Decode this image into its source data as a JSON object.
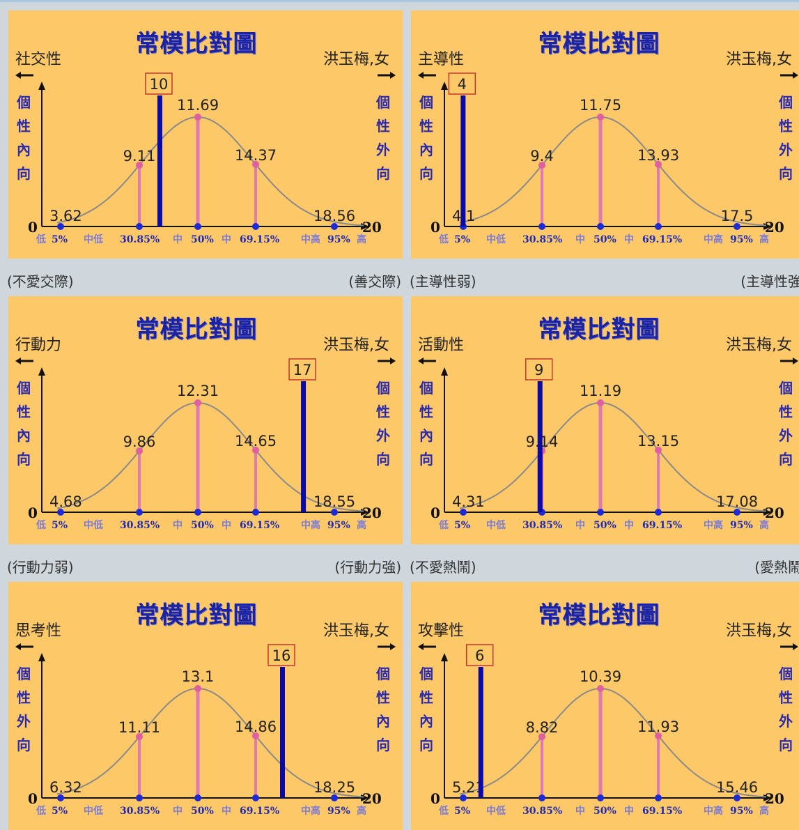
{
  "colors": {
    "panel_bg": "#fdc867",
    "curve": "#888888",
    "pink": "#e07ab0",
    "blue_bar": "#0a0aa8",
    "box": "#c0392b"
  },
  "panel_title": "常模比對圖",
  "person": "洪玉梅,女",
  "axis": {
    "zero": "0",
    "twenty": "20",
    "tick_labels": [
      "低",
      "5%",
      "中低",
      "30.85%",
      "中",
      "50%",
      "中",
      "69.15%",
      "中高",
      "95%",
      "高"
    ]
  },
  "chart_data": [
    {
      "type": "line",
      "trait": "社交性",
      "left_side": "個性內向",
      "right_side": "個性外向",
      "caption_left": "(不愛交際)",
      "caption_right": "(善交際)",
      "percentiles": [
        "5%",
        "30.85%",
        "50%",
        "69.15%",
        "95%"
      ],
      "values": [
        3.62,
        9.11,
        11.69,
        14.37,
        18.56
      ],
      "value_labels": [
        "3.62",
        "9.11",
        "11.69",
        "14.37",
        "18.56"
      ],
      "score": 10,
      "score_label": "10",
      "xlim": [
        0,
        20
      ]
    },
    {
      "type": "line",
      "trait": "主導性",
      "left_side": "個性內向",
      "right_side": "個性外向",
      "caption_left": "(主導性弱)",
      "caption_right": "(主導性強",
      "percentiles": [
        "5%",
        "30.85%",
        "50%",
        "69.15%",
        "95%"
      ],
      "values": [
        4.1,
        9.4,
        11.75,
        13.93,
        17.5
      ],
      "value_labels": [
        "4.1",
        "9.4",
        "11.75",
        "13.93",
        "17.5"
      ],
      "score": 4,
      "score_label": "4",
      "xlim": [
        0,
        20
      ]
    },
    {
      "type": "line",
      "trait": "行動力",
      "left_side": "個性內向",
      "right_side": "個性外向",
      "caption_left": "(行動力弱)",
      "caption_right": "(行動力強)",
      "percentiles": [
        "5%",
        "30.85%",
        "50%",
        "69.15%",
        "95%"
      ],
      "values": [
        4.68,
        9.86,
        12.31,
        14.65,
        18.55
      ],
      "value_labels": [
        "4.68",
        "9.86",
        "12.31",
        "14.65",
        "18.55"
      ],
      "score": 17,
      "score_label": "17",
      "xlim": [
        0,
        20
      ]
    },
    {
      "type": "line",
      "trait": "活動性",
      "left_side": "個性內向",
      "right_side": "個性外向",
      "caption_left": "(不愛熱鬧)",
      "caption_right": "(愛熱鬧",
      "percentiles": [
        "5%",
        "30.85%",
        "50%",
        "69.15%",
        "95%"
      ],
      "values": [
        4.31,
        9.14,
        11.19,
        13.15,
        17.08
      ],
      "value_labels": [
        "4.31",
        "9.14",
        "11.19",
        "13.15",
        "17.08"
      ],
      "score": 9,
      "score_label": "9",
      "xlim": [
        0,
        20
      ]
    },
    {
      "type": "line",
      "trait": "思考性",
      "left_side": "個性外向",
      "right_side": "個性內向",
      "caption_left": "",
      "caption_right": "",
      "percentiles": [
        "5%",
        "30.85%",
        "50%",
        "69.15%",
        "95%"
      ],
      "values": [
        6.32,
        11.11,
        13.1,
        14.86,
        18.25
      ],
      "value_labels": [
        "6.32",
        "11.11",
        "13.1",
        "14.86",
        "18.25"
      ],
      "score": 16,
      "score_label": "16",
      "xlim": [
        0,
        20
      ]
    },
    {
      "type": "line",
      "trait": "攻擊性",
      "left_side": "個性內向",
      "right_side": "個性外向",
      "caption_left": "",
      "caption_right": "",
      "percentiles": [
        "5%",
        "30.85%",
        "50%",
        "69.15%",
        "95%"
      ],
      "values": [
        5.21,
        8.82,
        10.39,
        11.93,
        15.46
      ],
      "value_labels": [
        "5.21",
        "8.82",
        "10.39",
        "11.93",
        "15.46"
      ],
      "score": 6,
      "score_label": "6",
      "xlim": [
        0,
        20
      ]
    }
  ]
}
